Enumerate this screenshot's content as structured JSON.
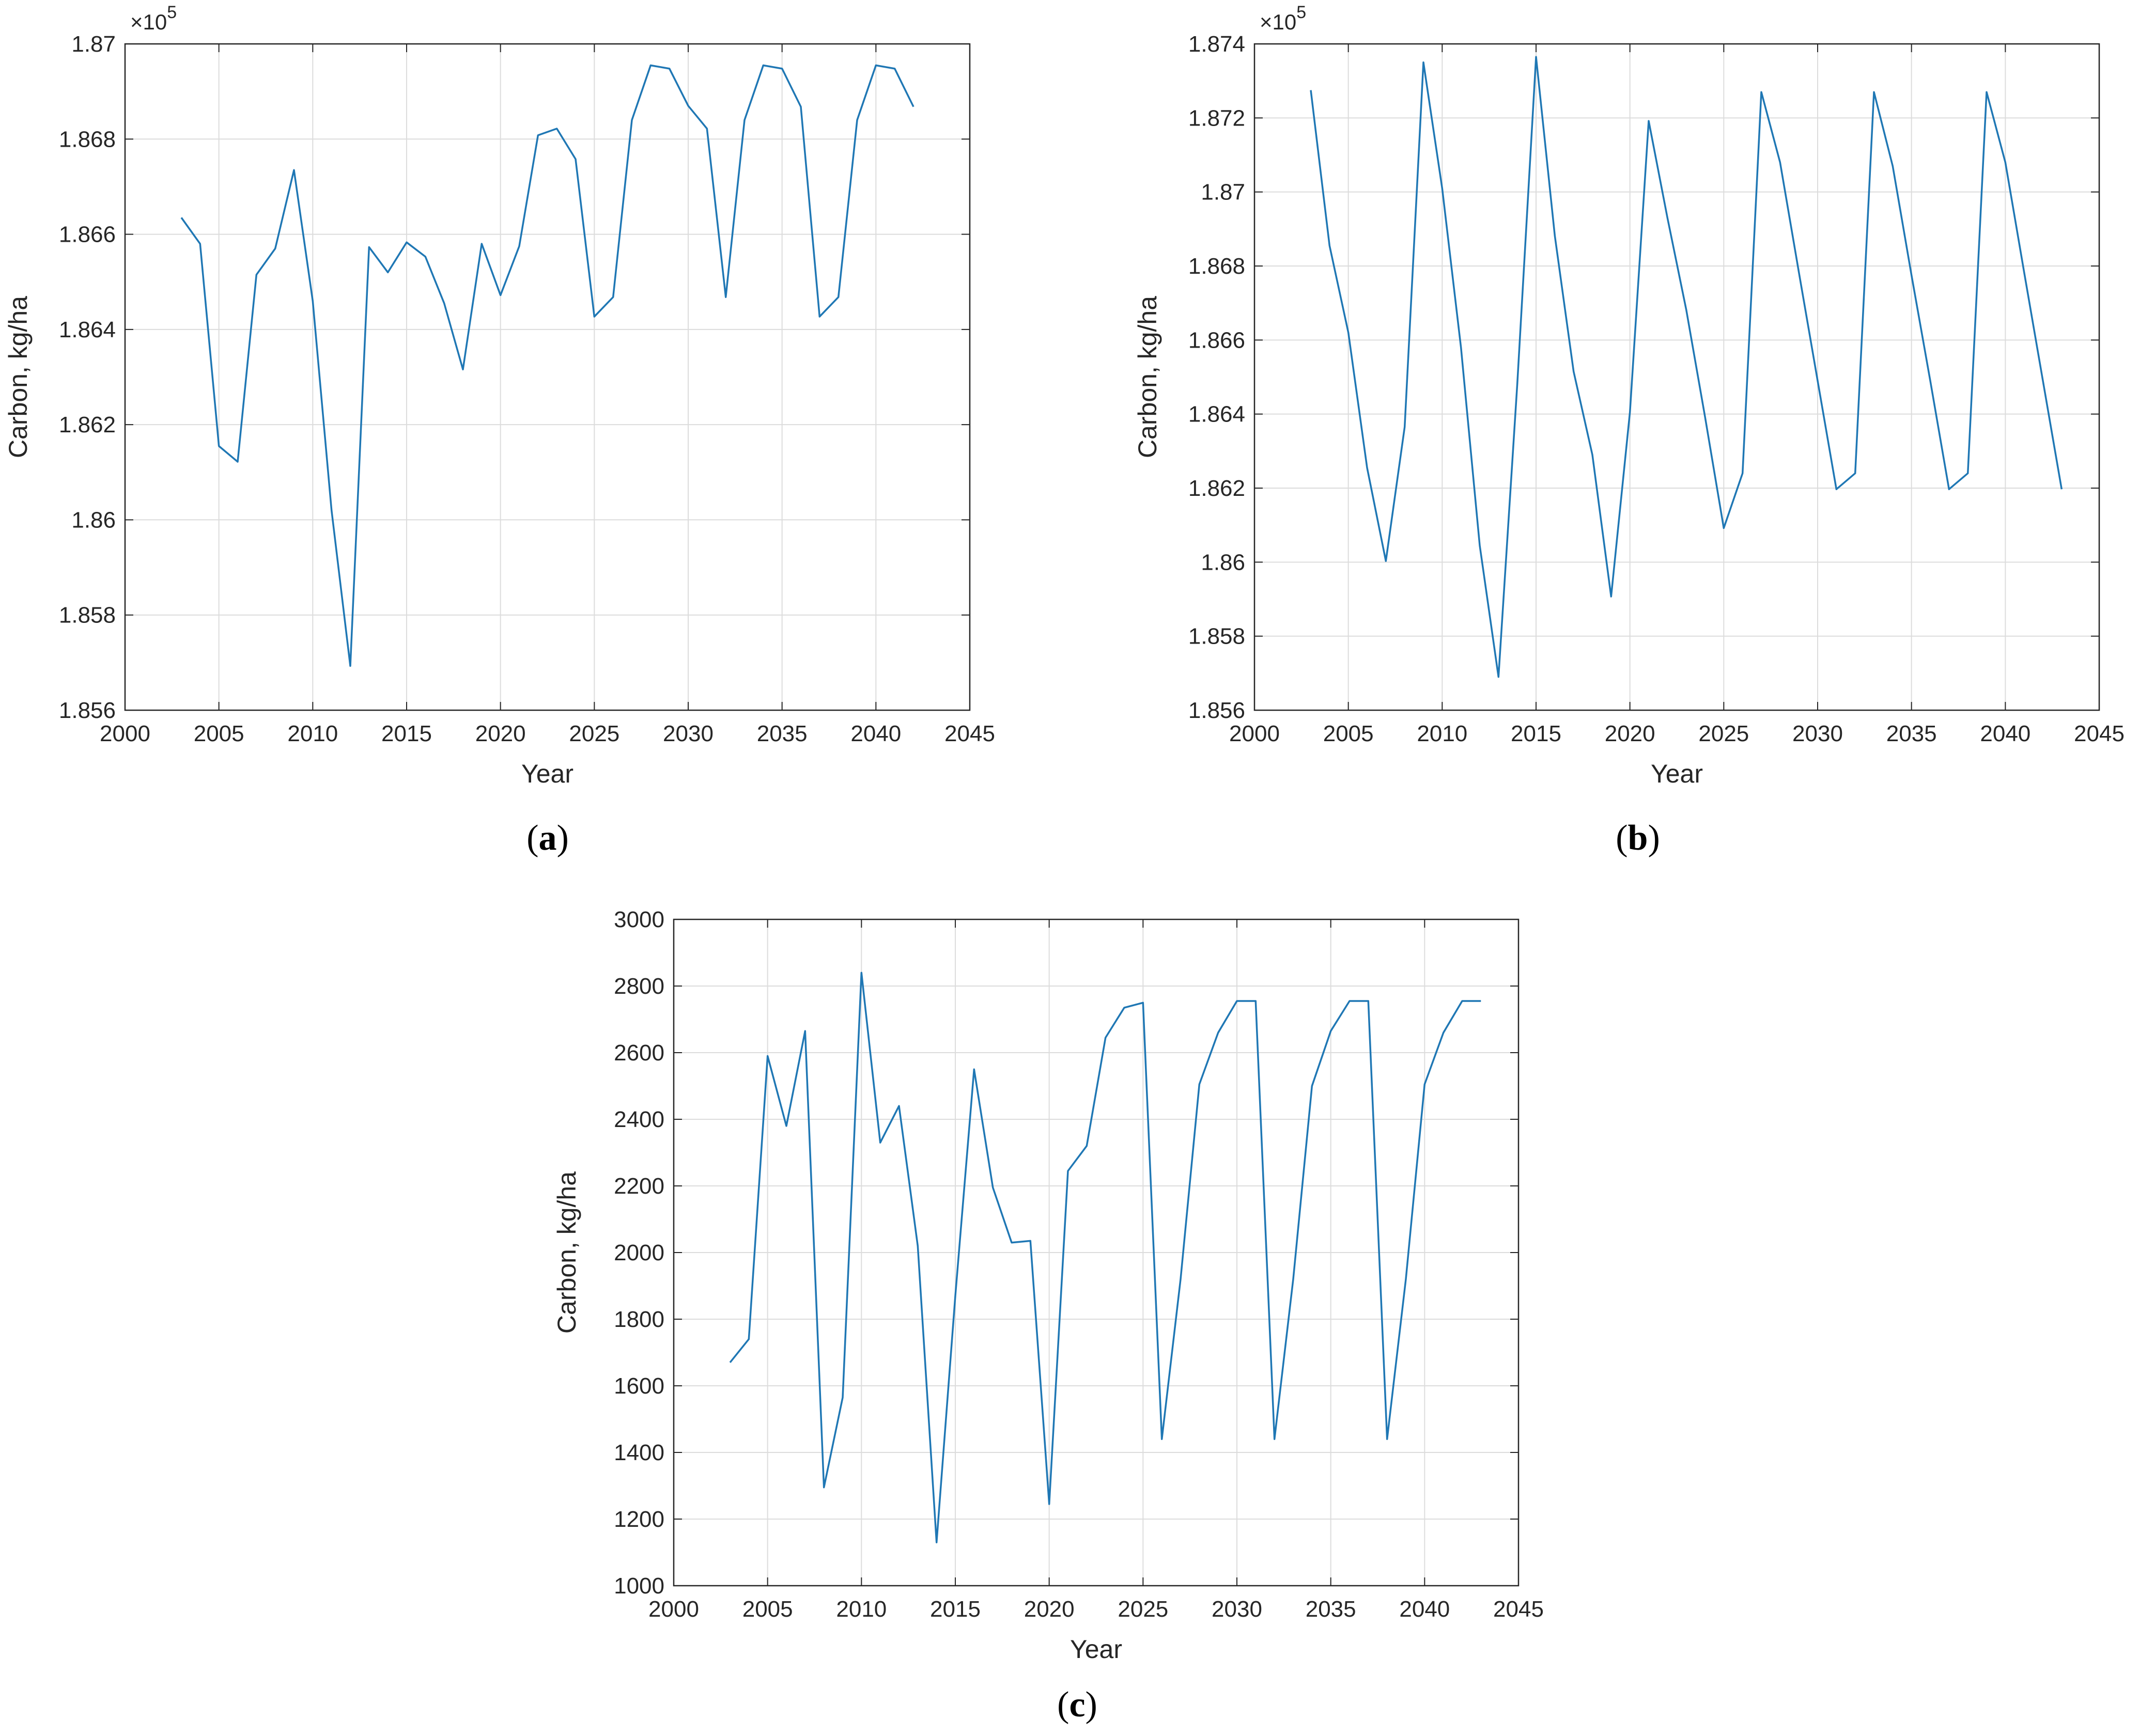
{
  "chart_data": [
    {
      "id": "a",
      "type": "line",
      "panel_label": "a",
      "xlabel": "Year",
      "ylabel": "Carbon, kg/ha",
      "exponent_label": "×10",
      "exponent_power": "5",
      "xlim": [
        2000,
        2045
      ],
      "ylim": [
        1.856,
        1.87
      ],
      "xticks": [
        "2000",
        "2005",
        "2010",
        "2015",
        "2020",
        "2025",
        "2030",
        "2035",
        "2040",
        "2045"
      ],
      "yticks": [
        "1.856",
        "1.858",
        "1.86",
        "1.862",
        "1.864",
        "1.866",
        "1.868",
        "1.87"
      ],
      "grid": true,
      "line_color": "#1f77b4",
      "series": [
        {
          "x": [
            2003,
            2004,
            2005,
            2006,
            2007,
            2008,
            2009,
            2010,
            2011,
            2012,
            2013,
            2014,
            2015,
            2016,
            2017,
            2018,
            2019,
            2020,
            2021,
            2022,
            2023,
            2024,
            2025,
            2026,
            2027,
            2028,
            2029,
            2030,
            2031,
            2032,
            2033,
            2034,
            2035,
            2036,
            2037,
            2038,
            2039,
            2040,
            2041,
            2042
          ],
          "y": [
            1.86635,
            1.8658,
            1.86155,
            1.86122,
            1.86515,
            1.8657,
            1.86735,
            1.8646,
            1.8602,
            1.85693,
            1.86573,
            1.8652,
            1.86583,
            1.86553,
            1.86455,
            1.86316,
            1.8658,
            1.86472,
            1.86575,
            1.86808,
            1.86822,
            1.86758,
            1.86427,
            1.86468,
            1.8684,
            1.86955,
            1.86948,
            1.8687,
            1.86822,
            1.86468,
            1.8684,
            1.86955,
            1.86948,
            1.86868,
            1.86427,
            1.86468,
            1.8684,
            1.86955,
            1.86948,
            1.86868
          ]
        }
      ]
    },
    {
      "id": "b",
      "type": "line",
      "panel_label": "b",
      "xlabel": "Year",
      "ylabel": "Carbon, kg/ha",
      "exponent_label": "×10",
      "exponent_power": "5",
      "xlim": [
        2000,
        2045
      ],
      "ylim": [
        1.856,
        1.874
      ],
      "xticks": [
        "2000",
        "2005",
        "2010",
        "2015",
        "2020",
        "2025",
        "2030",
        "2035",
        "2040",
        "2045"
      ],
      "yticks": [
        "1.856",
        "1.858",
        "1.86",
        "1.862",
        "1.864",
        "1.866",
        "1.868",
        "1.87",
        "1.872",
        "1.874"
      ],
      "grid": true,
      "line_color": "#1f77b4",
      "series": [
        {
          "x": [
            2003,
            2004,
            2005,
            2006,
            2007,
            2008,
            2009,
            2010,
            2011,
            2012,
            2013,
            2014,
            2015,
            2016,
            2017,
            2018,
            2019,
            2020,
            2021,
            2022,
            2023,
            2024,
            2025,
            2026,
            2027,
            2028,
            2029,
            2030,
            2031,
            2032,
            2033,
            2034,
            2035,
            2036,
            2037,
            2038,
            2039,
            2040,
            2041,
            2042,
            2043
          ],
          "y": [
            1.87275,
            1.86855,
            1.8662,
            1.86255,
            1.86003,
            1.86365,
            1.8735,
            1.8701,
            1.8658,
            1.86045,
            1.8569,
            1.86482,
            1.87365,
            1.86882,
            1.86515,
            1.8629,
            1.85907,
            1.86405,
            1.87192,
            1.8693,
            1.86682,
            1.86393,
            1.86092,
            1.8624,
            1.8727,
            1.8708,
            1.86783,
            1.8649,
            1.86197,
            1.8624,
            1.8727,
            1.8707,
            1.86775,
            1.8649,
            1.86197,
            1.8624,
            1.8727,
            1.8708,
            1.86783,
            1.8649,
            1.86197
          ]
        }
      ]
    },
    {
      "id": "c",
      "type": "line",
      "panel_label": "c",
      "xlabel": "Year",
      "ylabel": "Carbon, kg/ha",
      "exponent_label": "",
      "exponent_power": "",
      "xlim": [
        2000,
        2045
      ],
      "ylim": [
        1000,
        3000
      ],
      "xticks": [
        "2000",
        "2005",
        "2010",
        "2015",
        "2020",
        "2025",
        "2030",
        "2035",
        "2040",
        "2045"
      ],
      "yticks": [
        "1000",
        "1200",
        "1400",
        "1600",
        "1800",
        "2000",
        "2200",
        "2400",
        "2600",
        "2800",
        "3000"
      ],
      "grid": true,
      "line_color": "#1f77b4",
      "series": [
        {
          "x": [
            2003,
            2004,
            2005,
            2006,
            2007,
            2008,
            2009,
            2010,
            2011,
            2012,
            2013,
            2014,
            2015,
            2016,
            2017,
            2018,
            2019,
            2020,
            2021,
            2022,
            2023,
            2024,
            2025,
            2026,
            2027,
            2028,
            2029,
            2030,
            2031,
            2032,
            2033,
            2034,
            2035,
            2036,
            2037,
            2038,
            2039,
            2040,
            2041,
            2042,
            2043
          ],
          "y": [
            1670,
            1740,
            2590,
            2380,
            2665,
            1295,
            1565,
            2840,
            2330,
            2440,
            2020,
            1130,
            1870,
            2550,
            2195,
            2030,
            2035,
            1245,
            2245,
            2320,
            2645,
            2735,
            2750,
            1440,
            1920,
            2505,
            2660,
            2755,
            2755,
            1440,
            1920,
            2500,
            2665,
            2755,
            2755,
            1440,
            1920,
            2505,
            2660,
            2755,
            2755
          ]
        }
      ]
    }
  ]
}
